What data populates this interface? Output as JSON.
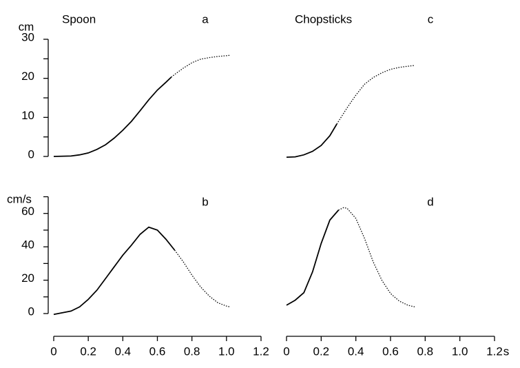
{
  "chart_data": [
    {
      "type": "line",
      "title": "Spoon",
      "panel_label": "a",
      "ylabel": "cm",
      "xlim": [
        0,
        1.2
      ],
      "ylim": [
        0,
        30
      ],
      "yticks": [
        0,
        10,
        20,
        30
      ],
      "yminor": [
        5,
        15,
        25
      ],
      "series": [
        {
          "color": "#000000",
          "dashed": false,
          "x": [
            0,
            0.1,
            0.15,
            0.2,
            0.25,
            0.3,
            0.35,
            0.4,
            0.45,
            0.5,
            0.55,
            0.6,
            0.65,
            0.68
          ],
          "values": [
            0,
            0.1,
            0.4,
            0.9,
            1.8,
            3,
            4.7,
            6.7,
            9,
            11.7,
            14.5,
            17,
            19,
            20.3
          ]
        },
        {
          "color": "#000000",
          "dashed": true,
          "x": [
            0.68,
            0.7,
            0.75,
            0.8,
            0.85,
            0.9,
            0.95,
            1.0,
            1.02
          ],
          "values": [
            20.3,
            21,
            22.6,
            24,
            24.9,
            25.3,
            25.6,
            25.8,
            25.9
          ]
        }
      ]
    },
    {
      "type": "line",
      "panel_label": "b",
      "ylabel": "cm/s",
      "xlim": [
        0,
        1.2
      ],
      "xticks": [
        0,
        0.2,
        0.4,
        0.6,
        0.8,
        {
          "value": 1,
          "label": "1.0"
        },
        1.2
      ],
      "ylim": [
        0,
        70
      ],
      "yticks": [
        0,
        20,
        40,
        60
      ],
      "yminor": [
        10,
        30,
        50,
        70
      ],
      "series": [
        {
          "color": "#000000",
          "dashed": false,
          "x": [
            0,
            0.1,
            0.15,
            0.2,
            0.25,
            0.3,
            0.35,
            0.4,
            0.45,
            0.5,
            0.55,
            0.6,
            0.65,
            0.7
          ],
          "values": [
            -0.5,
            1.5,
            4,
            8.5,
            14,
            21,
            28,
            35,
            41,
            47.5,
            51.8,
            50,
            44.5,
            38
          ]
        },
        {
          "color": "#000000",
          "dashed": true,
          "x": [
            0.7,
            0.75,
            0.8,
            0.85,
            0.9,
            0.95,
            1.0,
            1.02
          ],
          "values": [
            38,
            31,
            23,
            16,
            10.5,
            6.5,
            4.5,
            4
          ]
        }
      ]
    },
    {
      "type": "line",
      "title": "Chopsticks",
      "panel_label": "c",
      "xlim": [
        0,
        1.2
      ],
      "ylim": [
        0,
        30
      ],
      "series": [
        {
          "color": "#000000",
          "dashed": false,
          "x": [
            0,
            0.05,
            0.1,
            0.15,
            0.2,
            0.25,
            0.29
          ],
          "values": [
            -0.2,
            -0.1,
            0.4,
            1.3,
            2.8,
            5.3,
            8.3
          ]
        },
        {
          "color": "#000000",
          "dashed": true,
          "x": [
            0.29,
            0.35,
            0.4,
            0.45,
            0.5,
            0.55,
            0.6,
            0.65,
            0.7,
            0.74
          ],
          "values": [
            8.3,
            12.5,
            15.7,
            18.5,
            20.2,
            21.4,
            22.3,
            22.8,
            23.1,
            23.3
          ]
        }
      ]
    },
    {
      "type": "line",
      "panel_label": "d",
      "xlabel": "s",
      "xlim": [
        0,
        1.2
      ],
      "xticks": [
        0,
        0.2,
        0.4,
        0.6,
        0.8,
        {
          "value": 1,
          "label": "1.0"
        },
        1.2
      ],
      "ylim": [
        0,
        70
      ],
      "series": [
        {
          "color": "#000000",
          "dashed": false,
          "x": [
            0,
            0.05,
            0.1,
            0.15,
            0.2,
            0.25,
            0.3
          ],
          "values": [
            5,
            8,
            12.5,
            25,
            42,
            56,
            62
          ]
        },
        {
          "color": "#000000",
          "dashed": true,
          "x": [
            0.3,
            0.33,
            0.35,
            0.4,
            0.45,
            0.5,
            0.55,
            0.6,
            0.65,
            0.7,
            0.74
          ],
          "values": [
            62,
            63.5,
            63,
            57,
            45,
            31,
            20,
            12,
            7.5,
            5,
            4
          ]
        }
      ]
    }
  ]
}
